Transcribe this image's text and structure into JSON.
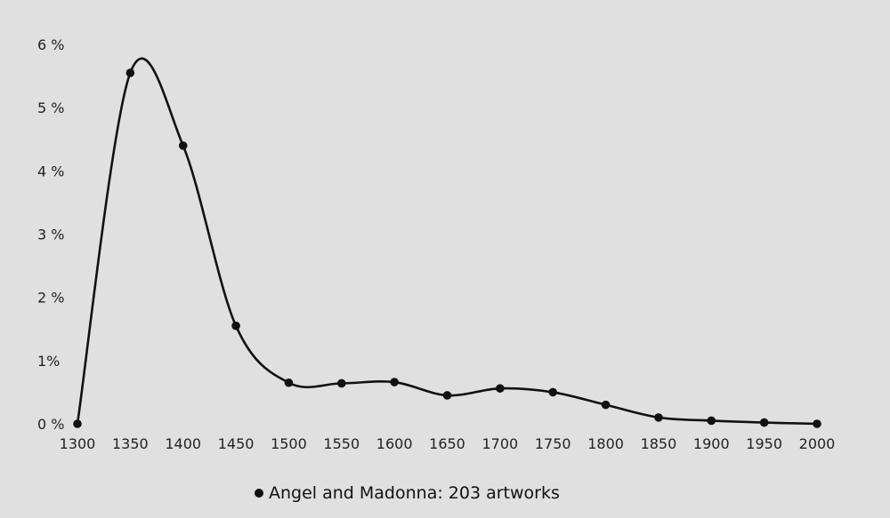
{
  "chart_data": {
    "type": "line",
    "x": [
      1300,
      1350,
      1400,
      1450,
      1500,
      1550,
      1600,
      1650,
      1700,
      1750,
      1800,
      1850,
      1900,
      1950,
      2000
    ],
    "series": [
      {
        "name": "Angel and Madonna: 203 artworks",
        "values": [
          0.0,
          5.55,
          4.4,
          1.55,
          0.65,
          0.64,
          0.66,
          0.45,
          0.56,
          0.5,
          0.3,
          0.1,
          0.05,
          0.02,
          0.0
        ]
      }
    ],
    "x_ticks": [
      "1300",
      "1350",
      "1400",
      "1450",
      "1500",
      "1550",
      "1600",
      "1650",
      "1700",
      "1750",
      "1800",
      "1850",
      "1900",
      "1950",
      "2000"
    ],
    "y_ticks": [
      "0 %",
      "1%",
      "2 %",
      "3 %",
      "4 %",
      "5 %",
      "6 %"
    ],
    "xlim": [
      1300,
      2000
    ],
    "ylim": [
      0,
      6
    ],
    "grid": false,
    "legend_position": "bottom-center",
    "colors": {
      "background": "#e0e0e0",
      "line": "#111111",
      "text": "#222222"
    }
  },
  "legend": {
    "label": "Angel and Madonna: 203 artworks"
  }
}
